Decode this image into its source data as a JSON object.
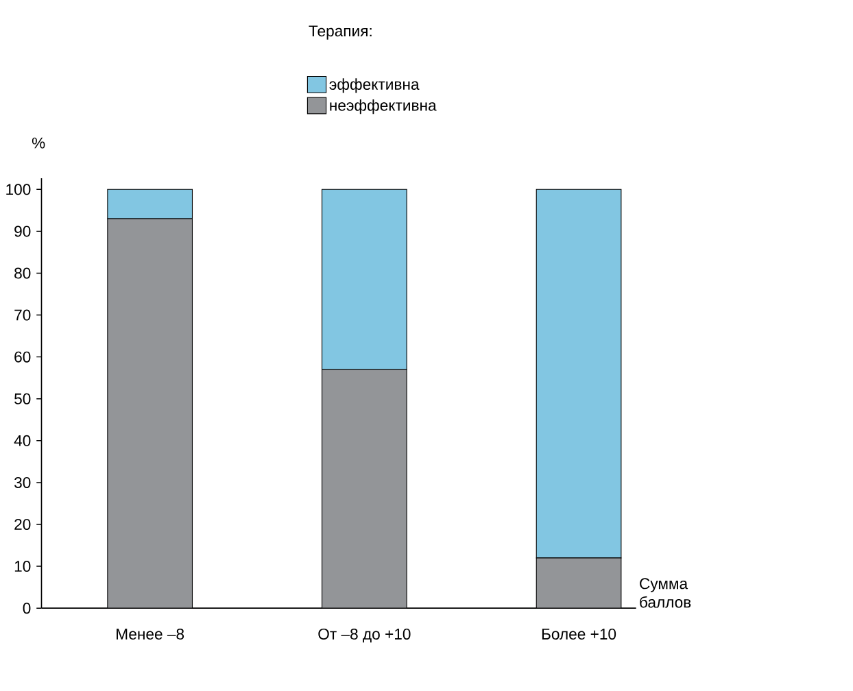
{
  "chart_data": {
    "type": "bar",
    "stacked": true,
    "ylabel": "%",
    "xlabel": "Сумма баллов",
    "legend_title": "Терапия:",
    "legend": "top",
    "categories": [
      "Менее –8",
      "От –8 до +10",
      "Более +10"
    ],
    "series": [
      {
        "name": "неэффективна",
        "color": "#939598",
        "values": [
          93,
          57,
          12
        ]
      },
      {
        "name": "эффективна",
        "color": "#82c6e2",
        "values": [
          7,
          43,
          88
        ]
      }
    ],
    "ylim": [
      0,
      100
    ],
    "yticks": [
      0,
      10,
      20,
      30,
      40,
      50,
      60,
      70,
      80,
      90,
      100
    ]
  }
}
